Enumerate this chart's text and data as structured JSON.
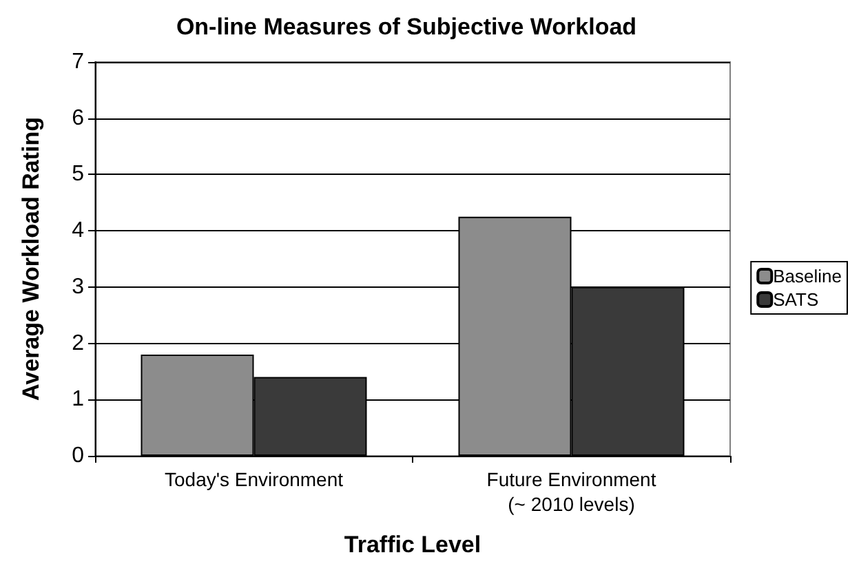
{
  "chart_data": {
    "type": "bar",
    "title": "On-line Measures of Subjective Workload",
    "xlabel": "Traffic Level",
    "ylabel": "Average Workload Rating",
    "categories": [
      "Today's Environment",
      "Future Environment\n(~ 2010 levels)"
    ],
    "series": [
      {
        "name": "Baseline",
        "color": "#8c8c8c",
        "values": [
          1.8,
          4.25
        ]
      },
      {
        "name": "SATS",
        "color": "#3a3a3a",
        "values": [
          1.4,
          3.0
        ]
      }
    ],
    "ylim": [
      0,
      7
    ],
    "yticks": [
      0,
      1,
      2,
      3,
      4,
      5,
      6,
      7
    ],
    "grid": "y",
    "legend": "right"
  }
}
